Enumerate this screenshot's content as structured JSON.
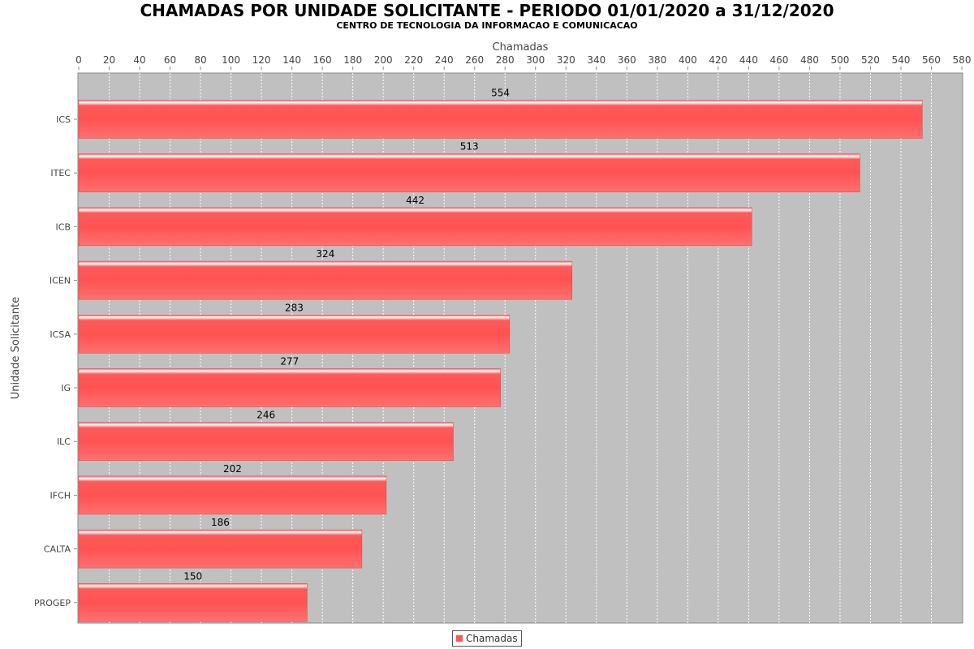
{
  "chart_data": {
    "type": "bar",
    "orientation": "horizontal",
    "title": "CHAMADAS POR UNIDADE SOLICITANTE - PERIODO 01/01/2020 a 31/12/2020",
    "subtitle": "CENTRO DE TECNOLOGIA DA INFORMACAO E COMUNICACAO",
    "xlabel": "Chamadas",
    "ylabel": "Unidade Solicitante",
    "xlim": [
      0,
      580
    ],
    "xticks": [
      0,
      20,
      40,
      60,
      80,
      100,
      120,
      140,
      160,
      180,
      200,
      220,
      240,
      260,
      280,
      300,
      320,
      340,
      360,
      380,
      400,
      420,
      440,
      460,
      480,
      500,
      520,
      540,
      560,
      580
    ],
    "x_axis_position": "top",
    "grid": true,
    "legend_position": "bottom",
    "categories": [
      "ICS",
      "ITEC",
      "ICB",
      "ICEN",
      "ICSA",
      "IG",
      "ILC",
      "IFCH",
      "CALTA",
      "PROGEP"
    ],
    "series": [
      {
        "name": "Chamadas",
        "values": [
          554,
          513,
          442,
          324,
          283,
          277,
          246,
          202,
          186,
          150
        ],
        "color": "#ff5555"
      }
    ]
  },
  "colors": {
    "plot_background": "#c0c0c0",
    "bar": "#ff5555"
  }
}
